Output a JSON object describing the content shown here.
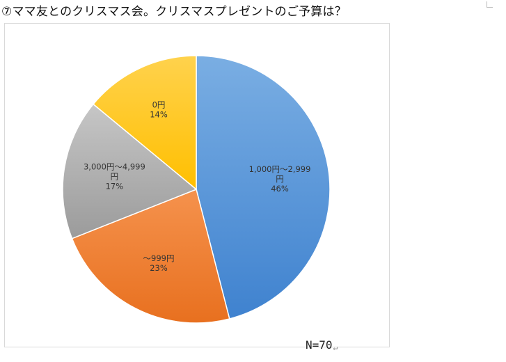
{
  "title": "⑦ママ友とのクリスマス会。クリスマスプレゼントのご予算は？",
  "note": "N=70",
  "return_mark": "↵",
  "chart_data": {
    "type": "pie",
    "title": "",
    "start_angle_deg": 0,
    "direction": "clockwise",
    "slices": [
      {
        "label_lines": [
          "1,000円～2,999",
          "円"
        ],
        "percent_text": "46%",
        "value": 46,
        "color_light": "#7aaee3",
        "color_dark": "#3f82cf"
      },
      {
        "label_lines": [
          "～999円"
        ],
        "percent_text": "23%",
        "value": 23,
        "color_light": "#f5924d",
        "color_dark": "#e8701f"
      },
      {
        "label_lines": [
          "3,000円～4,999",
          "円"
        ],
        "percent_text": "17%",
        "value": 17,
        "color_light": "#c6c6c6",
        "color_dark": "#9b9b9b"
      },
      {
        "label_lines": [
          "0円"
        ],
        "percent_text": "14%",
        "value": 14,
        "color_light": "#ffd24d",
        "color_dark": "#ffbf00"
      }
    ]
  }
}
